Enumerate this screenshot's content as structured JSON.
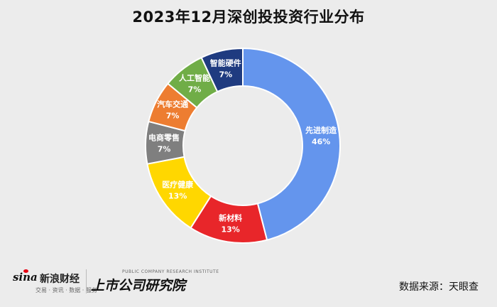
{
  "chart_data": {
    "type": "pie",
    "title": "2023年12月深创投投资行业分布",
    "slices": [
      {
        "label": "先进制造",
        "value": 46,
        "value_label": "46%",
        "color": "#6495ED"
      },
      {
        "label": "新材料",
        "value": 13,
        "value_label": "13%",
        "color": "#E8262A"
      },
      {
        "label": "医疗健康",
        "value": 13,
        "value_label": "13%",
        "color": "#FFD700"
      },
      {
        "label": "电商零售",
        "value": 7,
        "value_label": "7%",
        "color": "#7F7F7F"
      },
      {
        "label": "汽车交通",
        "value": 7,
        "value_label": "7%",
        "color": "#ED7D31"
      },
      {
        "label": "人工智能",
        "value": 7,
        "value_label": "7%",
        "color": "#70AD47"
      },
      {
        "label": "智能硬件",
        "value": 7,
        "value_label": "7%",
        "color": "#1F3B80"
      }
    ]
  },
  "footer": {
    "sina_logo_text": "sina",
    "sina_name": "新浪财经",
    "sina_tags": "交易 · 资讯 · 数据 · 服务",
    "institute_tagline": "PUBLIC COMPANY RESEARCH INSTITUTE",
    "institute_name": "上市公司研究院",
    "source": "数据来源：天眼查"
  }
}
